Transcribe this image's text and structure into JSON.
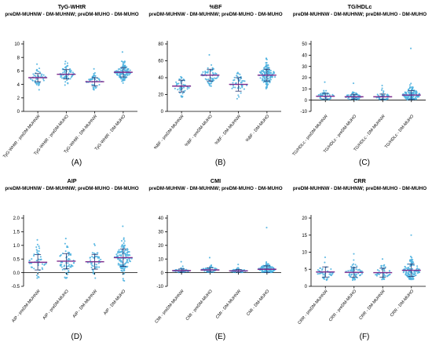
{
  "colors": {
    "point": "#4fb3e0",
    "mean_line": "#7b2a8c",
    "error_bar": "#1f2f6b",
    "axis": "#000000"
  },
  "chart_data": [
    {
      "panel": "A",
      "type": "scatter",
      "subtype": "dot-plot",
      "title": "TyG-WHtR",
      "subtitle": "preDM-MUHNW - DM-MUHNW; preDM-MUHO - DM-MUHO",
      "categories": [
        "TyG-WHtR - preDM-MUHNW",
        "TyG-WHtR - preDM-MUHO",
        "TyG-WHtR - DM-MUHNW",
        "TyG-WHtR - DM-MUHO"
      ],
      "means": [
        5.0,
        5.5,
        4.4,
        5.8
      ],
      "sd": [
        0.6,
        0.7,
        0.6,
        0.7
      ],
      "n": [
        45,
        60,
        45,
        130
      ],
      "ranges": [
        [
          3.2,
          7.0
        ],
        [
          3.9,
          7.4
        ],
        [
          3.2,
          6.3
        ],
        [
          4.2,
          8.8
        ]
      ],
      "yticks": [
        "0",
        "2",
        "4",
        "6",
        "8",
        "10"
      ],
      "ylim": [
        0,
        10
      ],
      "label": "(A)"
    },
    {
      "panel": "B",
      "type": "scatter",
      "subtype": "dot-plot",
      "title": "%BF",
      "subtitle": "preDM-MUHNW - DM-MUHNW; preDM-MUHO - DM-MUHO",
      "categories": [
        "%BF - preDM-MUHNW",
        "%BF - preDM-MUHO",
        "%BF - DM-MUHNW",
        "%BF - DM-MUHO"
      ],
      "means": [
        30,
        43,
        32,
        43
      ],
      "sd": [
        7,
        7,
        8,
        7
      ],
      "n": [
        45,
        60,
        45,
        130
      ],
      "ranges": [
        [
          17,
          41
        ],
        [
          30,
          67
        ],
        [
          15,
          46
        ],
        [
          27,
          63
        ]
      ],
      "yticks": [
        "0",
        "20",
        "40",
        "60",
        "80"
      ],
      "ylim": [
        0,
        80
      ],
      "label": "(B)"
    },
    {
      "panel": "C",
      "type": "scatter",
      "subtype": "dot-plot",
      "title": "TG/HDLc",
      "subtitle": "preDM-MUHNW - DM-MUHNW; preDM-MUHO - DM-MUHO",
      "categories": [
        "TG/HDLc - preDM-MUHNW",
        "TG/HDLc - preDM-MUHO",
        "TG/HDLc - DM-MUHNW",
        "TG/HDLc - DM-MUHO"
      ],
      "means": [
        3.5,
        3.0,
        3.0,
        4.5
      ],
      "sd": [
        2.5,
        2.2,
        2.4,
        4.0
      ],
      "n": [
        45,
        60,
        45,
        130
      ],
      "ranges": [
        [
          0.5,
          16
        ],
        [
          0.5,
          15
        ],
        [
          0.5,
          13
        ],
        [
          0.5,
          46
        ]
      ],
      "yticks": [
        "-10",
        "0",
        "10",
        "20",
        "30",
        "40",
        "50"
      ],
      "ylim": [
        -10,
        50
      ],
      "label": "(C)"
    },
    {
      "panel": "D",
      "type": "scatter",
      "subtype": "dot-plot",
      "title": "AIP",
      "subtitle": "preDM-MUHNW - DM-MUHNW; preDM-MUHO - DM-MUHO",
      "categories": [
        "AIP - preDM-MUHNW",
        "AIP - preDM-MUHO",
        "AIP - DM-MUHNW",
        "AIP - DM-MUHO"
      ],
      "means": [
        0.38,
        0.42,
        0.4,
        0.55
      ],
      "sd": [
        0.28,
        0.28,
        0.27,
        0.32
      ],
      "n": [
        45,
        60,
        45,
        130
      ],
      "ranges": [
        [
          -0.2,
          1.2
        ],
        [
          -0.2,
          1.25
        ],
        [
          -0.2,
          1.05
        ],
        [
          -0.3,
          1.7
        ]
      ],
      "yticks": [
        "-0.5",
        "0.0",
        "0.5",
        "1.0",
        "1.5",
        "2.0"
      ],
      "ylim": [
        -0.5,
        2.0
      ],
      "label": "(D)"
    },
    {
      "panel": "E",
      "type": "scatter",
      "subtype": "dot-plot",
      "title": "CMI",
      "subtitle": "preDM-MUHNW - DM-MUHNW; preDM-MUHO - DM-MUHO",
      "categories": [
        "CMI - preDM-MUHNW",
        "CMI - preDM-MUHO",
        "CMI - DM-MUHNW",
        "CMI - DM-MUHO"
      ],
      "means": [
        1.5,
        2.0,
        1.3,
        2.5
      ],
      "sd": [
        1.2,
        1.5,
        1.0,
        2.5
      ],
      "n": [
        45,
        60,
        45,
        130
      ],
      "ranges": [
        [
          0.2,
          8
        ],
        [
          0.2,
          11
        ],
        [
          0.2,
          6
        ],
        [
          0.2,
          33
        ]
      ],
      "yticks": [
        "-10",
        "0",
        "10",
        "20",
        "30",
        "40"
      ],
      "ylim": [
        -10,
        40
      ],
      "label": "(E)"
    },
    {
      "panel": "F",
      "type": "scatter",
      "subtype": "dot-plot",
      "title": "CRR",
      "subtitle": "preDM-MUHNW - DM-MUHNW; preDM-MUHO - DM-MUHO",
      "categories": [
        "CRR - preDM-MUHNW",
        "CRR - preDM-MUHO",
        "CRR - DM-MUHNW",
        "CRR - DM-MUHO"
      ],
      "means": [
        4.2,
        4.1,
        4.0,
        4.7
      ],
      "sd": [
        1.5,
        1.4,
        1.3,
        1.8
      ],
      "n": [
        45,
        60,
        45,
        130
      ],
      "ranges": [
        [
          1.8,
          8.5
        ],
        [
          1.8,
          9.5
        ],
        [
          2.0,
          8.0
        ],
        [
          2.0,
          15
        ]
      ],
      "yticks": [
        "0",
        "5",
        "10",
        "15",
        "20"
      ],
      "ylim": [
        0,
        20
      ],
      "label": "(F)"
    }
  ]
}
